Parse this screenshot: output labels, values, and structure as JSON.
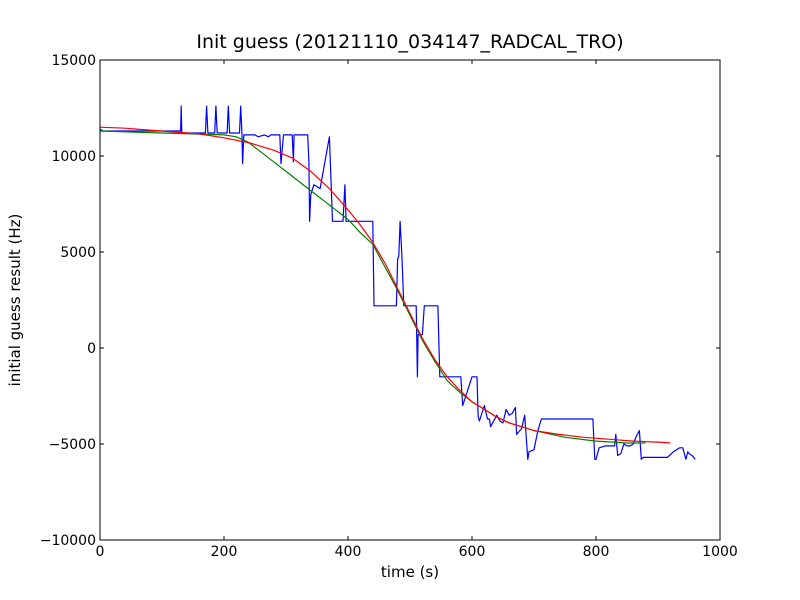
{
  "chart_data": {
    "type": "line",
    "title": "Init guess (20121110_034147_RADCAL_TRO)",
    "xlabel": "time (s)",
    "ylabel": "initial guess result (Hz)",
    "xlim": [
      0,
      1000
    ],
    "ylim": [
      -10000,
      15000
    ],
    "x_ticks": [
      0,
      200,
      400,
      600,
      800,
      1000
    ],
    "y_ticks": [
      -10000,
      -5000,
      0,
      5000,
      10000,
      15000
    ],
    "x_tick_labels": [
      "0",
      "200",
      "400",
      "600",
      "800",
      "1000"
    ],
    "y_tick_labels": [
      "−10000",
      "−5000",
      "0",
      "5000",
      "10000",
      "15000"
    ],
    "grid": false,
    "series": [
      {
        "color": "#0000ff",
        "x": [
          0,
          5,
          120,
          130,
          131,
          132,
          135,
          170,
          172,
          174,
          175,
          185,
          187,
          189,
          190,
          205,
          207,
          209,
          210,
          225,
          227,
          229,
          230,
          232,
          235,
          250,
          255,
          265,
          272,
          275,
          290,
          292,
          296,
          298,
          310,
          312,
          313,
          315,
          335,
          337,
          338,
          340,
          343,
          345,
          355,
          370,
          375,
          378,
          380,
          392,
          395,
          397,
          400,
          420,
          440,
          442,
          475,
          478,
          480,
          482,
          484,
          487,
          490,
          492,
          510,
          512,
          513,
          520,
          523,
          525,
          545,
          548,
          570,
          572,
          575,
          582,
          585,
          600,
          608,
          610,
          612,
          620,
          625,
          628,
          630,
          640,
          645,
          650,
          655,
          660,
          665,
          670,
          672,
          680,
          685,
          690,
          692,
          700,
          705,
          708,
          712,
          795,
          798,
          800,
          805,
          815,
          820,
          830,
          832,
          835,
          840,
          845,
          850,
          855,
          860,
          865,
          870,
          873,
          876,
          880,
          885,
          900,
          915,
          925,
          935,
          940,
          945,
          948,
          950,
          955,
          960
        ],
        "y": [
          11400,
          11300,
          11300,
          11300,
          12600,
          11200,
          11200,
          11200,
          12600,
          11200,
          11200,
          11200,
          12600,
          11200,
          11200,
          11200,
          12600,
          11200,
          11200,
          11200,
          12600,
          11100,
          9600,
          11100,
          11100,
          11100,
          11000,
          11100,
          11000,
          11100,
          11100,
          9600,
          11100,
          11100,
          11100,
          9700,
          11100,
          11100,
          11100,
          9700,
          6600,
          8000,
          8300,
          8500,
          8300,
          11000,
          6600,
          6600,
          6600,
          6600,
          8500,
          6600,
          6600,
          6600,
          6600,
          2200,
          2200,
          2200,
          4600,
          4800,
          6600,
          4800,
          2200,
          2200,
          2200,
          -1500,
          700,
          700,
          2200,
          2200,
          2200,
          -1500,
          -1500,
          -1500,
          -1500,
          -1500,
          -3000,
          -1500,
          -1500,
          -3600,
          -3800,
          -3000,
          -3700,
          -3700,
          -4100,
          -3500,
          -3800,
          -3900,
          -3200,
          -3500,
          -3400,
          -3100,
          -4500,
          -4200,
          -3500,
          -5800,
          -5400,
          -5300,
          -4500,
          -4100,
          -3700,
          -3700,
          -5800,
          -5800,
          -5200,
          -5100,
          -5100,
          -5100,
          -4500,
          -5600,
          -5500,
          -5000,
          -5100,
          -5100,
          -5000,
          -4600,
          -4300,
          -5800,
          -5700,
          -5700,
          -5700,
          -5700,
          -5700,
          -5400,
          -5200,
          -5200,
          -5800,
          -5400,
          -5500,
          -5600,
          -5800
        ]
      },
      {
        "color": "#008000",
        "x": [
          0,
          50,
          100,
          150,
          200,
          220,
          240,
          260,
          280,
          300,
          320,
          340,
          360,
          380,
          400,
          420,
          440,
          460,
          480,
          500,
          520,
          540,
          560,
          580,
          600,
          620,
          640,
          660,
          680,
          700,
          750,
          800,
          850,
          880
        ],
        "y": [
          11300,
          11250,
          11200,
          11150,
          11100,
          11000,
          10700,
          10200,
          9700,
          9200,
          8700,
          8200,
          7700,
          7200,
          6700,
          6000,
          5400,
          4200,
          3000,
          1700,
          400,
          -700,
          -1700,
          -2300,
          -2800,
          -3200,
          -3600,
          -3900,
          -4100,
          -4300,
          -4650,
          -4850,
          -4950,
          -4950
        ]
      },
      {
        "color": "#ff0000",
        "x": [
          0,
          40,
          80,
          120,
          160,
          200,
          240,
          280,
          310,
          340,
          370,
          400,
          420,
          440,
          460,
          480,
          500,
          520,
          540,
          560,
          580,
          600,
          620,
          640,
          660,
          680,
          700,
          740,
          780,
          820,
          860,
          900,
          920
        ],
        "y": [
          11500,
          11450,
          11350,
          11250,
          11150,
          10950,
          10700,
          10300,
          9900,
          9200,
          8300,
          7200,
          6400,
          5500,
          4400,
          3100,
          1800,
          500,
          -600,
          -1500,
          -2200,
          -2800,
          -3200,
          -3600,
          -3900,
          -4100,
          -4300,
          -4500,
          -4650,
          -4750,
          -4850,
          -4900,
          -4950
        ]
      }
    ]
  }
}
